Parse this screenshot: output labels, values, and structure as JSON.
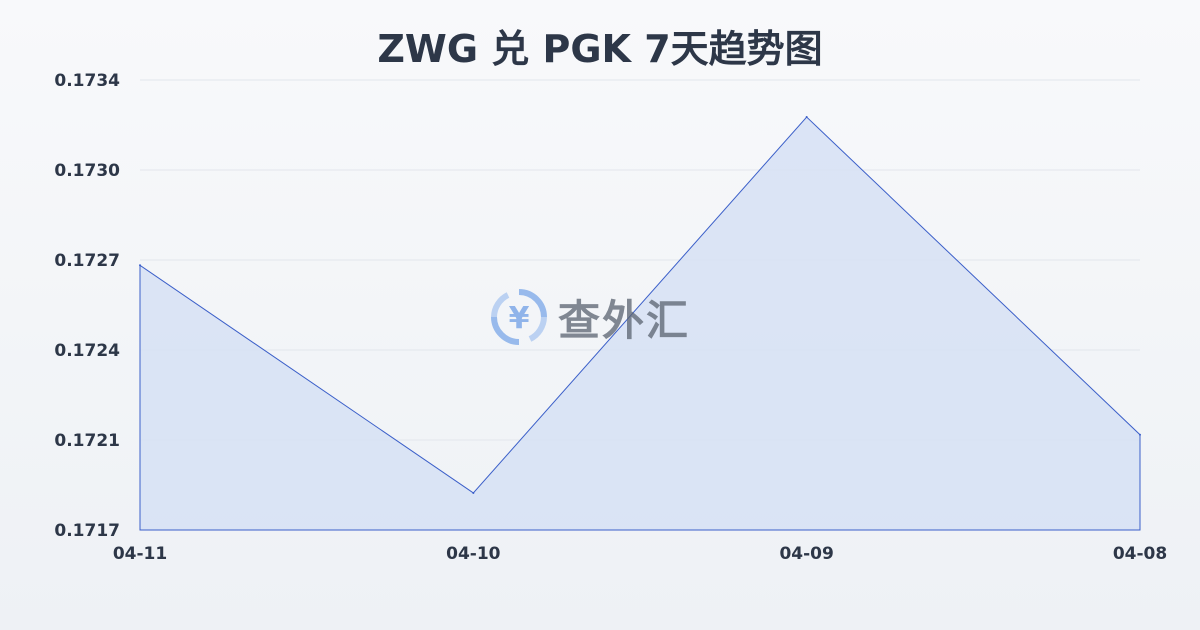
{
  "chart_data": {
    "type": "area",
    "title": "ZWG 兑 PGK 7天趋势图",
    "categories": [
      "04-11",
      "04-10",
      "04-09",
      "04-08"
    ],
    "series": [
      {
        "values": [
          0.1727,
          0.17184,
          0.17326,
          0.17206
        ]
      }
    ],
    "yticks": [
      "0.1734",
      "0.1730",
      "0.1727",
      "0.1724",
      "0.1721",
      "0.1717"
    ],
    "ylim": [
      0.1717,
      0.1734
    ],
    "grid": true,
    "colors": {
      "line": "#3b5fc9",
      "fill": "#d6e0f5"
    }
  },
  "watermark": "查外汇"
}
